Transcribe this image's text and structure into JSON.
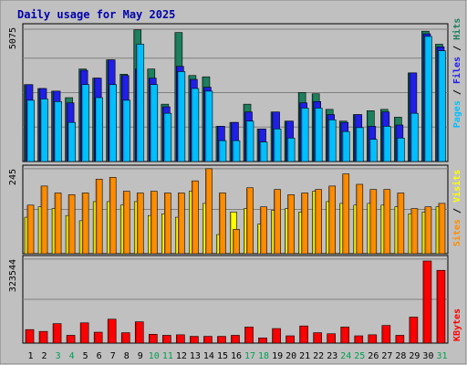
{
  "chart_data": [
    {
      "type": "bar",
      "title": "Daily usage for May 2025",
      "categories": [
        "1",
        "2",
        "3",
        "4",
        "5",
        "6",
        "7",
        "8",
        "9",
        "10",
        "11",
        "12",
        "13",
        "14",
        "15",
        "16",
        "17",
        "18",
        "19",
        "20",
        "21",
        "22",
        "23",
        "24",
        "25",
        "26",
        "27",
        "28",
        "29",
        "30",
        "31"
      ],
      "weekend_days": [
        "3",
        "4",
        "10",
        "11",
        "17",
        "18",
        "24",
        "25",
        "31"
      ],
      "ytick": "5075",
      "ylim": [
        0,
        5075
      ],
      "series": [
        {
          "name": "Hits",
          "color": "#1e7f5e",
          "values": [
            2950,
            2800,
            2700,
            2450,
            3550,
            3200,
            3900,
            3350,
            5050,
            3550,
            2200,
            4950,
            3300,
            3250,
            1350,
            1500,
            2200,
            1250,
            1900,
            1550,
            2650,
            2600,
            2000,
            1550,
            1800,
            1950,
            2000,
            1700,
            3400,
            5000,
            4500
          ]
        },
        {
          "name": "Files",
          "color": "#1f1fe6",
          "values": [
            2950,
            2800,
            2700,
            2250,
            3500,
            3200,
            3900,
            3300,
            3550,
            3200,
            2100,
            3650,
            3150,
            2850,
            1350,
            1500,
            1900,
            1250,
            1900,
            1550,
            2250,
            2300,
            1800,
            1500,
            1800,
            1350,
            1900,
            1400,
            3400,
            4900,
            4400
          ]
        },
        {
          "name": "Pages",
          "color": "#00bfff",
          "values": [
            2350,
            2400,
            2300,
            1500,
            2950,
            2450,
            2950,
            2350,
            4500,
            2950,
            1850,
            3450,
            2800,
            2700,
            800,
            800,
            1550,
            750,
            1250,
            900,
            2050,
            2050,
            1600,
            1150,
            1300,
            850,
            1350,
            900,
            1850,
            4800,
            4250
          ]
        }
      ]
    },
    {
      "type": "bar",
      "categories": [
        "1",
        "2",
        "3",
        "4",
        "5",
        "6",
        "7",
        "8",
        "9",
        "10",
        "11",
        "12",
        "13",
        "14",
        "15",
        "16",
        "17",
        "18",
        "19",
        "20",
        "21",
        "22",
        "23",
        "24",
        "25",
        "26",
        "27",
        "28",
        "29",
        "30",
        "31"
      ],
      "ytick": "245",
      "ylim": [
        0,
        245
      ],
      "series": [
        {
          "name": "Visits",
          "color": "#ffff00",
          "values": [
            105,
            135,
            130,
            110,
            95,
            150,
            150,
            140,
            150,
            110,
            115,
            105,
            180,
            145,
            55,
            120,
            130,
            85,
            125,
            130,
            120,
            180,
            150,
            145,
            140,
            145,
            140,
            135,
            115,
            120,
            135
          ]
        },
        {
          "name": "Sites",
          "color": "#ff8c00",
          "values": [
            140,
            195,
            175,
            170,
            175,
            215,
            220,
            180,
            175,
            180,
            175,
            175,
            210,
            245,
            175,
            70,
            190,
            135,
            185,
            170,
            175,
            185,
            195,
            230,
            200,
            185,
            185,
            175,
            130,
            135,
            145
          ]
        }
      ]
    },
    {
      "type": "bar",
      "categories": [
        "1",
        "2",
        "3",
        "4",
        "5",
        "6",
        "7",
        "8",
        "9",
        "10",
        "11",
        "12",
        "13",
        "14",
        "15",
        "16",
        "17",
        "18",
        "19",
        "20",
        "21",
        "22",
        "23",
        "24",
        "25",
        "26",
        "27",
        "28",
        "29",
        "30",
        "31"
      ],
      "ytick": "323544",
      "ylim": [
        0,
        323544
      ],
      "series": [
        {
          "name": "KBytes",
          "color": "#ff0000",
          "values": [
            52000,
            45000,
            75000,
            30000,
            78000,
            42000,
            92000,
            40000,
            82000,
            34000,
            30000,
            32000,
            26000,
            26000,
            26000,
            30000,
            62000,
            20000,
            56000,
            28000,
            66000,
            40000,
            36000,
            62000,
            28000,
            32000,
            68000,
            30000,
            100000,
            328000,
            280000
          ]
        }
      ]
    }
  ]
}
